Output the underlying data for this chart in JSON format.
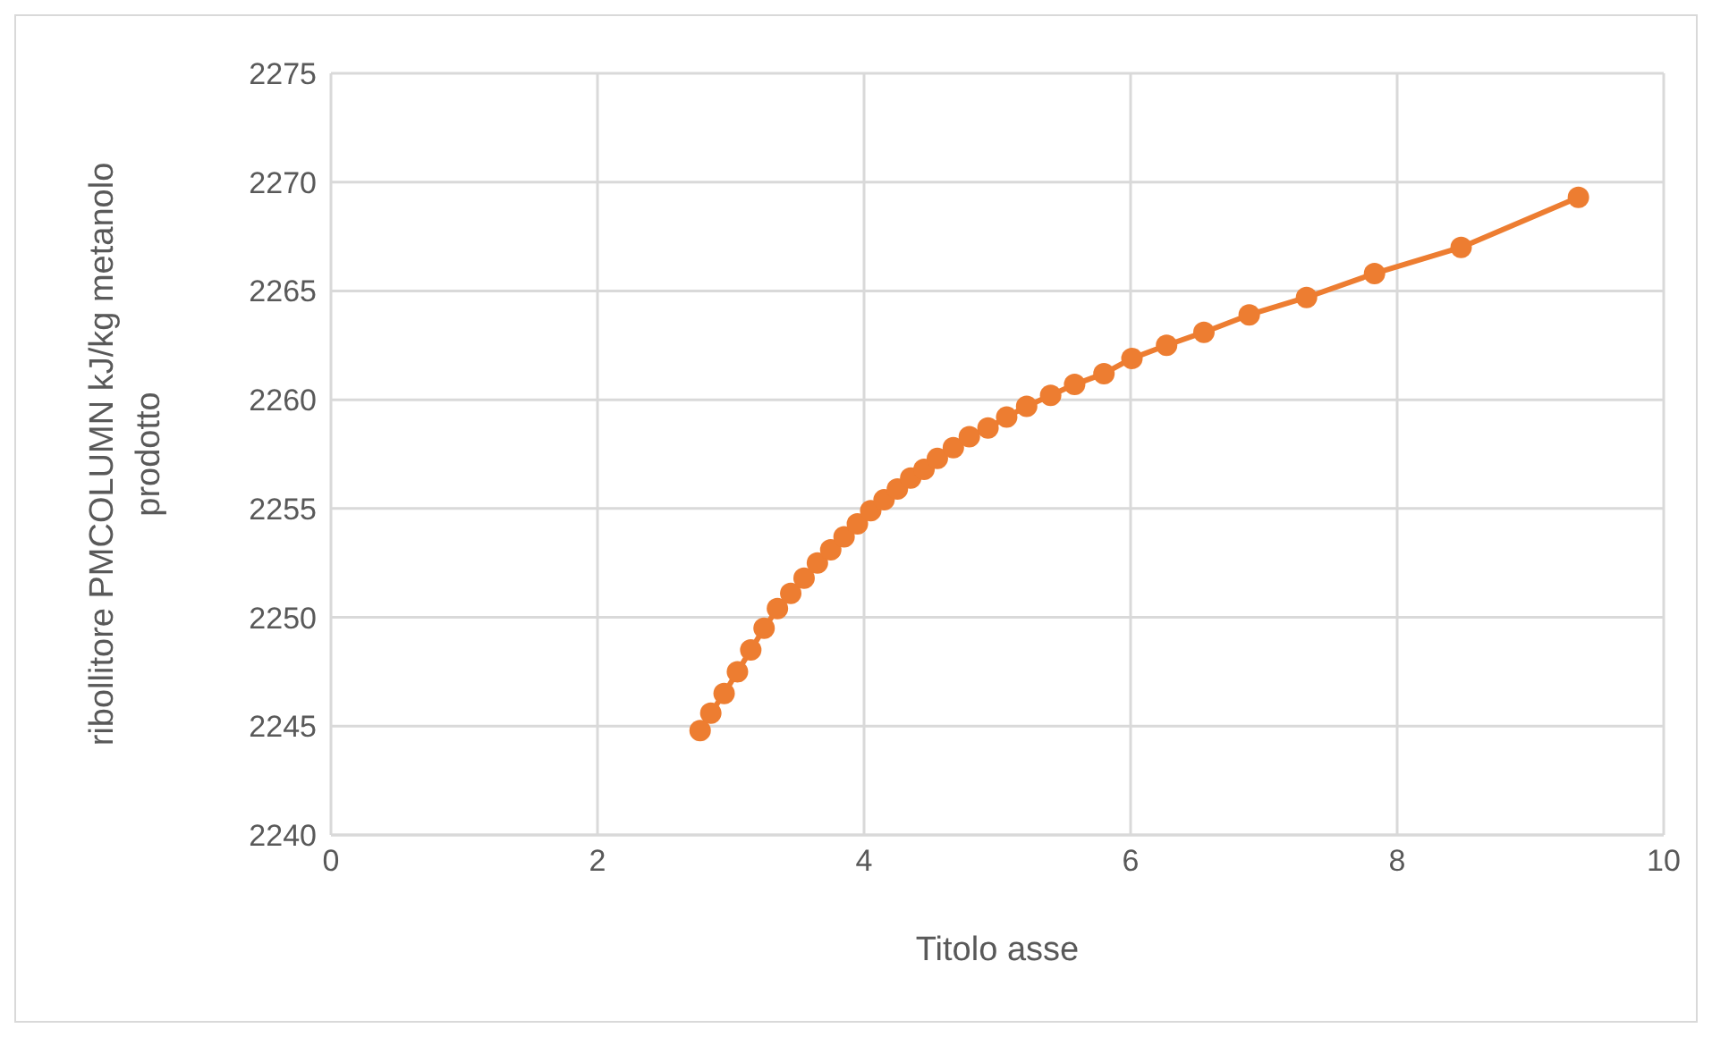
{
  "chart_data": {
    "type": "line",
    "xlabel": "Titolo asse",
    "ylabel": "ribollitore PMCOLUMN kJ/kg metanolo prodotto",
    "xlim": [
      0,
      10
    ],
    "xticks": [
      0,
      2,
      4,
      6,
      8,
      10
    ],
    "ylim": [
      2240,
      2275
    ],
    "yticks": [
      2240,
      2245,
      2250,
      2255,
      2260,
      2265,
      2270,
      2275
    ],
    "grid": true,
    "marker": "circle",
    "line_style": "solid",
    "legend": false,
    "series": [
      {
        "color": "#ed7d31",
        "x": [
          2.77,
          2.85,
          2.95,
          3.05,
          3.15,
          3.25,
          3.35,
          3.45,
          3.55,
          3.65,
          3.75,
          3.85,
          3.95,
          4.05,
          4.15,
          4.25,
          4.35,
          4.45,
          4.55,
          4.67,
          4.79,
          4.93,
          5.07,
          5.22,
          5.4,
          5.58,
          5.8,
          6.01,
          6.27,
          6.55,
          6.89,
          7.32,
          7.83,
          8.48,
          9.36
        ],
        "values": [
          2244.8,
          2245.6,
          2246.5,
          2247.5,
          2248.5,
          2249.5,
          2250.4,
          2251.1,
          2251.8,
          2252.5,
          2253.1,
          2253.7,
          2254.3,
          2254.9,
          2255.4,
          2255.9,
          2256.4,
          2256.8,
          2257.3,
          2257.8,
          2258.3,
          2258.7,
          2259.2,
          2259.7,
          2260.2,
          2260.7,
          2261.2,
          2261.9,
          2262.5,
          2263.1,
          2263.9,
          2264.7,
          2265.8,
          2267.0,
          2269.3
        ]
      }
    ]
  }
}
